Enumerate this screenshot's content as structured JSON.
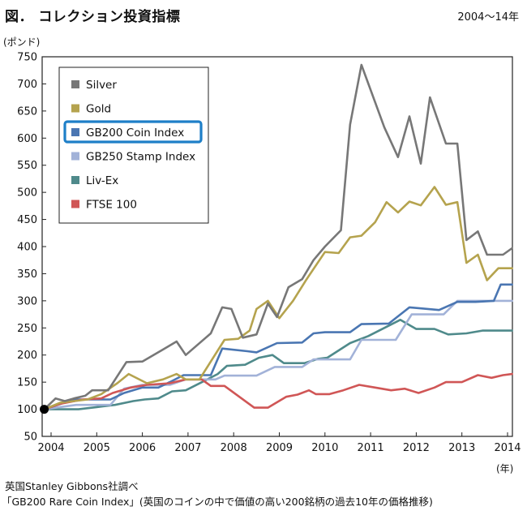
{
  "header": {
    "title": "図． コレクション投資指標",
    "period": "2004～14年"
  },
  "notes": {
    "source": "英国Stanley Gibbons社調べ",
    "description": "「GB200 Rare Coin Index」(英国のコインの中で価値の高い200銘柄の過去10年の価格推移)"
  },
  "chart_data": {
    "type": "line",
    "title": "コレクション投資指標",
    "xlabel": "(年)",
    "ylabel": "(ポンド)",
    "xlim": [
      2004,
      2014
    ],
    "ylim": [
      50,
      750
    ],
    "xticks": [
      2004,
      2005,
      2006,
      2007,
      2008,
      2009,
      2010,
      2011,
      2012,
      2013,
      2014
    ],
    "yticks": [
      50,
      100,
      150,
      200,
      250,
      300,
      350,
      400,
      450,
      500,
      550,
      600,
      650,
      700,
      750
    ],
    "grid": false,
    "legend_position": "top-left",
    "highlighted_series": "GB200 Coin Index",
    "start_point": {
      "x": 2003.85,
      "y": 100
    },
    "series": [
      {
        "name": "Silver",
        "color": "#777777",
        "points": [
          [
            2003.85,
            100
          ],
          [
            2004.1,
            120
          ],
          [
            2004.3,
            115
          ],
          [
            2004.5,
            120
          ],
          [
            2004.75,
            125
          ],
          [
            2004.9,
            135
          ],
          [
            2005.25,
            135
          ],
          [
            2005.65,
            187
          ],
          [
            2006.0,
            188
          ],
          [
            2006.45,
            210
          ],
          [
            2006.75,
            225
          ],
          [
            2006.95,
            200
          ],
          [
            2007.5,
            240
          ],
          [
            2007.75,
            288
          ],
          [
            2007.95,
            285
          ],
          [
            2008.2,
            232
          ],
          [
            2008.5,
            238
          ],
          [
            2008.75,
            295
          ],
          [
            2008.95,
            270
          ],
          [
            2009.2,
            325
          ],
          [
            2009.5,
            340
          ],
          [
            2009.75,
            375
          ],
          [
            2010.0,
            400
          ],
          [
            2010.35,
            430
          ],
          [
            2010.55,
            625
          ],
          [
            2010.8,
            735
          ],
          [
            2011.3,
            620
          ],
          [
            2011.6,
            565
          ],
          [
            2011.85,
            640
          ],
          [
            2012.1,
            553
          ],
          [
            2012.3,
            675
          ],
          [
            2012.65,
            590
          ],
          [
            2012.9,
            590
          ],
          [
            2013.1,
            412
          ],
          [
            2013.35,
            428
          ],
          [
            2013.55,
            385
          ],
          [
            2013.9,
            385
          ],
          [
            2014.1,
            397
          ]
        ]
      },
      {
        "name": "Gold",
        "color": "#B5A34E",
        "points": [
          [
            2003.85,
            100
          ],
          [
            2004.2,
            112
          ],
          [
            2004.5,
            115
          ],
          [
            2004.8,
            118
          ],
          [
            2005.1,
            128
          ],
          [
            2005.45,
            148
          ],
          [
            2005.7,
            165
          ],
          [
            2006.1,
            148
          ],
          [
            2006.45,
            155
          ],
          [
            2006.75,
            165
          ],
          [
            2006.95,
            155
          ],
          [
            2007.25,
            155
          ],
          [
            2007.55,
            195
          ],
          [
            2007.8,
            228
          ],
          [
            2008.1,
            230
          ],
          [
            2008.35,
            245
          ],
          [
            2008.5,
            285
          ],
          [
            2008.75,
            300
          ],
          [
            2009.0,
            268
          ],
          [
            2009.3,
            300
          ],
          [
            2009.6,
            340
          ],
          [
            2010.0,
            390
          ],
          [
            2010.3,
            388
          ],
          [
            2010.55,
            417
          ],
          [
            2010.8,
            420
          ],
          [
            2011.1,
            445
          ],
          [
            2011.35,
            482
          ],
          [
            2011.6,
            463
          ],
          [
            2011.85,
            483
          ],
          [
            2012.1,
            476
          ],
          [
            2012.4,
            510
          ],
          [
            2012.65,
            477
          ],
          [
            2012.9,
            482
          ],
          [
            2013.1,
            370
          ],
          [
            2013.35,
            385
          ],
          [
            2013.55,
            338
          ],
          [
            2013.8,
            360
          ],
          [
            2014.1,
            360
          ]
        ]
      },
      {
        "name": "GB200 Coin Index",
        "color": "#4A76B2",
        "points": [
          [
            2003.85,
            100
          ],
          [
            2004.5,
            118
          ],
          [
            2005.3,
            118
          ],
          [
            2005.6,
            130
          ],
          [
            2006.0,
            140
          ],
          [
            2006.35,
            140
          ],
          [
            2006.6,
            150
          ],
          [
            2006.9,
            163
          ],
          [
            2007.5,
            163
          ],
          [
            2007.75,
            212
          ],
          [
            2008.3,
            207
          ],
          [
            2008.5,
            205
          ],
          [
            2008.95,
            222
          ],
          [
            2009.5,
            223
          ],
          [
            2009.75,
            240
          ],
          [
            2010.0,
            242
          ],
          [
            2010.55,
            242
          ],
          [
            2010.8,
            257
          ],
          [
            2011.4,
            258
          ],
          [
            2011.85,
            288
          ],
          [
            2012.5,
            283
          ],
          [
            2012.9,
            298
          ],
          [
            2013.3,
            298
          ],
          [
            2013.7,
            300
          ],
          [
            2013.85,
            330
          ],
          [
            2014.1,
            330
          ]
        ]
      },
      {
        "name": "GB250 Stamp Index",
        "color": "#A2B2D8",
        "points": [
          [
            2003.85,
            100
          ],
          [
            2004.55,
            108
          ],
          [
            2005.3,
            108
          ],
          [
            2005.6,
            138
          ],
          [
            2006.0,
            145
          ],
          [
            2006.3,
            145
          ],
          [
            2006.6,
            145
          ],
          [
            2006.95,
            155
          ],
          [
            2007.6,
            155
          ],
          [
            2007.8,
            162
          ],
          [
            2008.5,
            162
          ],
          [
            2008.9,
            178
          ],
          [
            2009.5,
            178
          ],
          [
            2009.75,
            192
          ],
          [
            2010.55,
            192
          ],
          [
            2010.8,
            228
          ],
          [
            2011.55,
            228
          ],
          [
            2011.9,
            275
          ],
          [
            2012.6,
            275
          ],
          [
            2012.9,
            300
          ],
          [
            2014.1,
            300
          ]
        ]
      },
      {
        "name": "Liv-Ex",
        "color": "#4F8A8B",
        "points": [
          [
            2003.85,
            100
          ],
          [
            2004.6,
            100
          ],
          [
            2005.0,
            104
          ],
          [
            2005.4,
            108
          ],
          [
            2005.8,
            115
          ],
          [
            2006.05,
            118
          ],
          [
            2006.35,
            120
          ],
          [
            2006.65,
            133
          ],
          [
            2006.95,
            135
          ],
          [
            2007.35,
            152
          ],
          [
            2007.65,
            165
          ],
          [
            2007.85,
            180
          ],
          [
            2008.25,
            182
          ],
          [
            2008.55,
            195
          ],
          [
            2008.85,
            200
          ],
          [
            2009.1,
            185
          ],
          [
            2009.55,
            185
          ],
          [
            2009.85,
            193
          ],
          [
            2010.05,
            195
          ],
          [
            2010.55,
            222
          ],
          [
            2010.95,
            235
          ],
          [
            2011.3,
            250
          ],
          [
            2011.65,
            265
          ],
          [
            2012.0,
            248
          ],
          [
            2012.4,
            248
          ],
          [
            2012.7,
            238
          ],
          [
            2013.1,
            240
          ],
          [
            2013.45,
            245
          ],
          [
            2014.1,
            245
          ]
        ]
      },
      {
        "name": "FTSE 100",
        "color": "#D05656",
        "points": [
          [
            2003.85,
            100
          ],
          [
            2004.2,
            110
          ],
          [
            2004.7,
            118
          ],
          [
            2005.1,
            120
          ],
          [
            2005.35,
            130
          ],
          [
            2005.75,
            140
          ],
          [
            2006.1,
            145
          ],
          [
            2006.6,
            148
          ],
          [
            2006.95,
            155
          ],
          [
            2007.3,
            155
          ],
          [
            2007.5,
            143
          ],
          [
            2007.8,
            143
          ],
          [
            2008.45,
            103
          ],
          [
            2008.75,
            103
          ],
          [
            2009.15,
            123
          ],
          [
            2009.4,
            127
          ],
          [
            2009.65,
            135
          ],
          [
            2009.8,
            128
          ],
          [
            2010.1,
            128
          ],
          [
            2010.4,
            135
          ],
          [
            2010.75,
            145
          ],
          [
            2011.1,
            140
          ],
          [
            2011.45,
            135
          ],
          [
            2011.75,
            138
          ],
          [
            2012.05,
            130
          ],
          [
            2012.4,
            140
          ],
          [
            2012.65,
            150
          ],
          [
            2013.0,
            150
          ],
          [
            2013.35,
            163
          ],
          [
            2013.65,
            158
          ],
          [
            2013.9,
            163
          ],
          [
            2014.1,
            165
          ]
        ]
      }
    ]
  }
}
